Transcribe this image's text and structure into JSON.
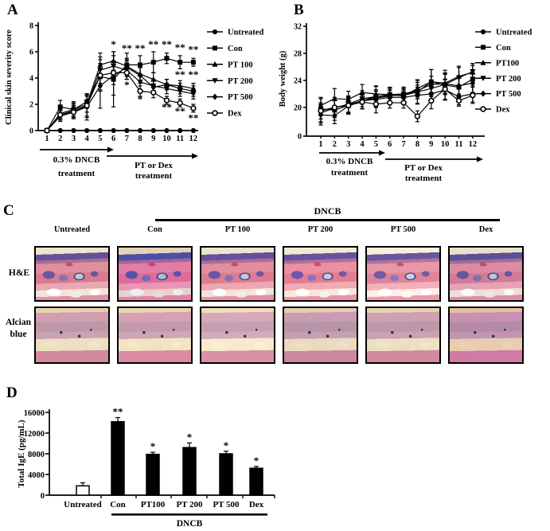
{
  "figure": {
    "background": "#ffffff",
    "ink": "#000000"
  },
  "panels": {
    "a": {
      "label": "A"
    },
    "b": {
      "label": "B"
    },
    "c": {
      "label": "C",
      "group_label": "DNCB",
      "columns": [
        "Untreated",
        "Con",
        "PT 100",
        "PT 200",
        "PT 500",
        "Dex"
      ],
      "rows": [
        "H&E",
        "Alcian blue"
      ],
      "row1_label": "H&E",
      "row2_lines": [
        "Alcian",
        "blue"
      ]
    },
    "d": {
      "label": "D"
    }
  },
  "chart_data": [
    {
      "id": "A",
      "type": "line",
      "title": "",
      "ylabel": "Clinical skin severity score",
      "xlabel": "",
      "x": [
        1,
        2,
        3,
        4,
        5,
        6,
        7,
        8,
        9,
        10,
        11,
        12
      ],
      "ylim": [
        0,
        8
      ],
      "yticks": [
        0,
        2,
        4,
        6,
        8
      ],
      "legend_position": "right",
      "series": [
        {
          "name": "Untreated",
          "marker": "filled-circle",
          "values": [
            0,
            0,
            0,
            0,
            0,
            0,
            0,
            0,
            0,
            0,
            0,
            0
          ],
          "errors": [
            0,
            0,
            0,
            0,
            0,
            0,
            0,
            0,
            0,
            0,
            0,
            0
          ]
        },
        {
          "name": "Con",
          "marker": "filled-square",
          "values": [
            0,
            1.8,
            1.6,
            2.2,
            4.1,
            3.9,
            5.0,
            5.0,
            5.2,
            5.5,
            5.2,
            5.2
          ],
          "errors": [
            0,
            0.5,
            0.6,
            0.5,
            1.0,
            2.1,
            0.9,
            0.7,
            0.8,
            0.4,
            0.5,
            0.3
          ]
        },
        {
          "name": "PT 100",
          "marker": "filled-triangle-up",
          "values": [
            0,
            1.3,
            1.6,
            2.0,
            5.0,
            5.3,
            4.9,
            4.3,
            3.9,
            3.5,
            3.4,
            3.2
          ],
          "errors": [
            0,
            0.4,
            0.5,
            0.6,
            0.9,
            0.7,
            0.6,
            0.5,
            0.5,
            0.4,
            0.4,
            0.4
          ]
        },
        {
          "name": "PT 200",
          "marker": "filled-triangle-down",
          "values": [
            0,
            1.2,
            1.5,
            1.9,
            4.6,
            4.9,
            4.6,
            3.7,
            3.4,
            3.2,
            3.0,
            2.8
          ],
          "errors": [
            0,
            0.4,
            0.5,
            0.8,
            1.0,
            0.8,
            0.7,
            0.6,
            0.5,
            0.4,
            0.4,
            0.4
          ]
        },
        {
          "name": "PT 500",
          "marker": "filled-diamond",
          "values": [
            0,
            1.1,
            1.4,
            1.8,
            3.4,
            4.2,
            4.8,
            4.2,
            3.3,
            3.5,
            3.2,
            3.0
          ],
          "errors": [
            0,
            0.4,
            0.5,
            1.0,
            1.7,
            1.5,
            0.6,
            0.6,
            0.5,
            0.4,
            0.4,
            0.4
          ]
        },
        {
          "name": "Dex",
          "marker": "open-circle",
          "values": [
            0,
            1.2,
            1.4,
            1.9,
            4.2,
            4.4,
            4.4,
            3.0,
            2.9,
            2.3,
            2.1,
            1.7
          ],
          "errors": [
            0,
            0.3,
            0.4,
            0.9,
            1.2,
            0.9,
            0.5,
            0.4,
            0.4,
            0.3,
            0.3,
            0.3
          ]
        }
      ],
      "annotations": [
        {
          "x": 6,
          "y": 6.55,
          "text": "*"
        },
        {
          "x": 7,
          "y": 6.25,
          "text": "**"
        },
        {
          "x": 8,
          "y": 6.25,
          "text": "**"
        },
        {
          "x": 9,
          "y": 6.55,
          "text": "**"
        },
        {
          "x": 10,
          "y": 6.55,
          "text": "**"
        },
        {
          "x": 11,
          "y": 6.3,
          "text": "**"
        },
        {
          "x": 12,
          "y": 6.15,
          "text": "**"
        },
        {
          "x": 11,
          "y": 4.25,
          "text": "**"
        },
        {
          "x": 12,
          "y": 4.25,
          "text": "**"
        },
        {
          "x": 7,
          "y": 3.45,
          "text": "*"
        },
        {
          "x": 8,
          "y": 2.35,
          "text": "*"
        },
        {
          "x": 10,
          "y": 1.75,
          "text": "**"
        },
        {
          "x": 11,
          "y": 1.45,
          "text": "**"
        },
        {
          "x": 12,
          "y": 0.95,
          "text": "**"
        }
      ],
      "x_arrows": [
        {
          "from_week": 1,
          "to_week": 5.5,
          "label": [
            "0.3% DNCB",
            "treatment"
          ]
        },
        {
          "from_week": 5.5,
          "to_week": 12.5,
          "label": [
            "PT or Dex",
            "treatment"
          ]
        }
      ]
    },
    {
      "id": "B",
      "type": "line",
      "title": "",
      "ylabel": "Body weight (g)",
      "xlabel": "",
      "x": [
        1,
        2,
        3,
        4,
        5,
        6,
        7,
        8,
        9,
        10,
        11,
        12
      ],
      "ylim": [
        0,
        32
      ],
      "yticks": [
        0,
        20,
        24,
        28,
        32
      ],
      "axis_break_between": [
        0,
        20
      ],
      "legend_position": "right",
      "series": [
        {
          "name": "Untreated",
          "marker": "filled-circle",
          "values": [
            19.5,
            20.0,
            20.4,
            21.0,
            21.2,
            21.5,
            21.5,
            21.8,
            22.0,
            22.6,
            21.6,
            22.0
          ],
          "errors": [
            1.8,
            1.5,
            1.2,
            1.2,
            1.2,
            1.0,
            1.0,
            1.2,
            1.2,
            1.5,
            1.2,
            1.2
          ]
        },
        {
          "name": "Con",
          "marker": "filled-square",
          "values": [
            19.8,
            19.6,
            20.3,
            21.0,
            21.6,
            21.8,
            21.8,
            22.3,
            23.8,
            23.3,
            23.0,
            24.2
          ],
          "errors": [
            1.5,
            1.5,
            1.2,
            1.2,
            1.5,
            1.2,
            1.0,
            1.8,
            1.8,
            2.2,
            1.5,
            2.0
          ]
        },
        {
          "name": "PT100",
          "marker": "filled-triangle-up",
          "values": [
            20.3,
            21.3,
            21.2,
            22.2,
            22.0,
            21.9,
            21.7,
            22.8,
            23.8,
            23.6,
            24.6,
            25.2
          ],
          "errors": [
            1.2,
            1.5,
            1.2,
            1.2,
            1.2,
            1.0,
            1.0,
            1.2,
            1.8,
            1.5,
            1.5,
            1.3
          ]
        },
        {
          "name": "PT 200",
          "marker": "filled-triangle-down",
          "values": [
            19.2,
            19.9,
            20.5,
            21.3,
            21.6,
            21.9,
            22.0,
            22.3,
            22.8,
            23.4,
            24.4,
            25.3
          ],
          "errors": [
            1.3,
            1.2,
            1.2,
            1.2,
            1.0,
            1.0,
            1.0,
            1.0,
            1.2,
            1.5,
            1.5,
            1.2
          ]
        },
        {
          "name": "PT 500",
          "marker": "filled-diamond",
          "values": [
            18.9,
            18.8,
            20.2,
            21.0,
            21.4,
            21.7,
            22.0,
            22.5,
            23.4,
            23.5,
            23.2,
            23.6
          ],
          "errors": [
            1.5,
            1.2,
            1.2,
            1.2,
            1.2,
            1.0,
            1.0,
            1.2,
            1.2,
            1.5,
            1.2,
            1.5
          ]
        },
        {
          "name": "Dex",
          "marker": "open-circle",
          "values": [
            19.5,
            20.0,
            20.3,
            20.8,
            20.5,
            20.7,
            20.7,
            18.7,
            21.0,
            22.7,
            21.0,
            21.8
          ],
          "errors": [
            1.2,
            1.2,
            1.0,
            1.0,
            1.3,
            0.8,
            0.8,
            0.8,
            1.2,
            1.5,
            0.8,
            1.2
          ]
        }
      ],
      "annotations": [],
      "x_arrows": [
        {
          "from_week": 1,
          "to_week": 5.5,
          "label": [
            "0.3% DNCB",
            "treatment"
          ]
        },
        {
          "from_week": 5.5,
          "to_week": 12.5,
          "label": [
            "PT or Dex",
            "treatment"
          ]
        }
      ]
    },
    {
      "id": "D",
      "type": "bar",
      "title": "",
      "ylabel": "Total IgE (pg/mL)",
      "xlabel": "",
      "categories": [
        "Untreated",
        "Con",
        "PT100",
        "PT 200",
        "PT 500",
        "Dex"
      ],
      "values": [
        1800,
        14200,
        7900,
        9200,
        8000,
        5200
      ],
      "errors": [
        600,
        800,
        400,
        900,
        500,
        350
      ],
      "significance": [
        "",
        "**",
        "*",
        "*",
        "*",
        "*"
      ],
      "bar_colors": [
        "#ffffff",
        "#000000",
        "#000000",
        "#000000",
        "#000000",
        "#000000"
      ],
      "ylim": [
        0,
        16000
      ],
      "yticks": [
        0,
        4000,
        8000,
        12000,
        16000
      ],
      "group_line_label": "DNCB",
      "group_line_span": [
        "Con",
        "Dex"
      ]
    }
  ]
}
